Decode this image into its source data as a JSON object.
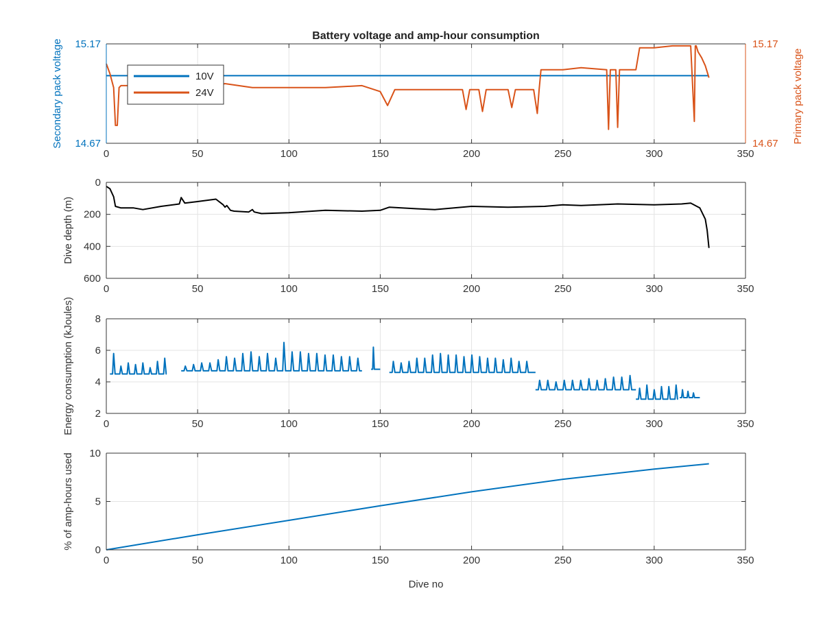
{
  "chart_data": [
    {
      "type": "line",
      "title": "Battery voltage and amp-hour consumption",
      "xlabel": "",
      "ylabel_left": "Secondary pack voltage",
      "ylabel_right": "Primary pack voltage",
      "xlim": [
        0,
        350
      ],
      "ylim": [
        14.67,
        15.17
      ],
      "xticks": [
        "0",
        "50",
        "100",
        "150",
        "200",
        "250",
        "300",
        "350"
      ],
      "yticks_left": [
        "14.67",
        "15.17"
      ],
      "yticks_right": [
        "14.67",
        "15.17"
      ],
      "grid": true,
      "legend": {
        "position": "top-left",
        "entries": [
          "10V",
          "24V"
        ]
      },
      "colors": {
        "10V": "#0072bd",
        "24V": "#d95319",
        "left_axis": "#0072bd",
        "right_axis": "#d95319"
      },
      "series": [
        {
          "name": "10V",
          "axis": "left",
          "x": [
            0,
            330
          ],
          "y": [
            15.01,
            15.01
          ]
        },
        {
          "name": "24V",
          "axis": "right",
          "x": [
            0,
            2,
            4,
            5,
            6,
            7,
            8,
            20,
            30,
            43,
            60,
            65,
            80,
            100,
            120,
            140,
            150,
            154,
            158,
            180,
            195,
            197,
            199,
            204,
            206,
            208,
            220,
            222,
            224,
            230,
            234,
            236,
            237,
            238,
            250,
            260,
            274,
            275,
            276,
            279,
            280,
            281,
            290,
            292,
            300,
            310,
            320,
            322,
            322.5,
            323,
            324,
            326,
            328,
            330
          ],
          "y": [
            15.07,
            15.02,
            14.95,
            14.76,
            14.76,
            14.95,
            14.96,
            14.96,
            14.96,
            14.96,
            14.96,
            14.97,
            14.95,
            14.95,
            14.95,
            14.96,
            14.93,
            14.86,
            14.94,
            14.94,
            14.94,
            14.84,
            14.94,
            14.94,
            14.83,
            14.94,
            14.94,
            14.85,
            14.94,
            14.94,
            14.94,
            14.82,
            14.94,
            15.04,
            15.04,
            15.05,
            15.04,
            14.74,
            15.04,
            15.04,
            14.75,
            15.04,
            15.04,
            15.15,
            15.15,
            15.16,
            15.16,
            14.78,
            15.16,
            15.16,
            15.13,
            15.1,
            15.06,
            15.0
          ]
        }
      ]
    },
    {
      "type": "line",
      "title": "",
      "xlabel": "",
      "ylabel": "Dive depth (m)",
      "xlim": [
        0,
        350
      ],
      "ylim": [
        0,
        600
      ],
      "yreversed": true,
      "xticks": [
        "0",
        "50",
        "100",
        "150",
        "200",
        "250",
        "300",
        "350"
      ],
      "yticks": [
        "0",
        "200",
        "400",
        "600"
      ],
      "grid": true,
      "colors": {
        "line": "#000000"
      },
      "series": [
        {
          "x": [
            0,
            2,
            4,
            5,
            8,
            15,
            20,
            30,
            40,
            41,
            43,
            50,
            60,
            64,
            65,
            66,
            68,
            70,
            78,
            80,
            81,
            85,
            100,
            120,
            140,
            150,
            155,
            170,
            180,
            200,
            220,
            240,
            250,
            260,
            280,
            300,
            315,
            320,
            325,
            328,
            329,
            330
          ],
          "y": [
            25,
            40,
            90,
            150,
            160,
            160,
            170,
            150,
            135,
            95,
            130,
            120,
            105,
            140,
            155,
            145,
            175,
            180,
            185,
            170,
            185,
            195,
            190,
            175,
            180,
            175,
            155,
            165,
            170,
            150,
            155,
            150,
            140,
            145,
            135,
            140,
            135,
            130,
            160,
            230,
            300,
            410
          ]
        }
      ]
    },
    {
      "type": "line",
      "title": "",
      "xlabel": "",
      "ylabel": "Energy consumption (kJoules)",
      "xlim": [
        0,
        350
      ],
      "ylim": [
        2,
        8
      ],
      "xticks": [
        "0",
        "50",
        "100",
        "150",
        "200",
        "250",
        "300",
        "350"
      ],
      "yticks": [
        "2",
        "4",
        "6",
        "8"
      ],
      "grid": true,
      "colors": {
        "line": "#0072bd"
      },
      "segments": [
        {
          "start": 2,
          "end": 33,
          "period": 4,
          "base": 4.5,
          "peaks": [
            5.8,
            5.0,
            5.2,
            5.1,
            5.2,
            4.9,
            5.3,
            5.5
          ]
        },
        {
          "start": 41,
          "end": 140,
          "period": 4.5,
          "base": 4.7,
          "peaks": [
            5.0,
            5.1,
            5.2,
            5.2,
            5.4,
            5.6,
            5.5,
            5.8,
            5.9,
            5.6,
            5.8,
            5.5,
            6.5,
            5.9,
            5.9,
            5.8,
            5.8,
            5.7,
            5.7,
            5.6,
            5.6,
            5.5
          ]
        },
        {
          "start": 145,
          "end": 150,
          "period": 2.5,
          "base": 4.8,
          "peaks": [
            6.2
          ]
        },
        {
          "start": 155,
          "end": 235,
          "period": 4.3,
          "base": 4.6,
          "peaks": [
            5.3,
            5.2,
            5.3,
            5.5,
            5.5,
            5.7,
            5.8,
            5.7,
            5.7,
            5.6,
            5.7,
            5.6,
            5.5,
            5.5,
            5.4,
            5.5,
            5.3,
            5.3,
            5.4
          ]
        },
        {
          "start": 235,
          "end": 290,
          "period": 4.5,
          "base": 3.5,
          "peaks": [
            4.1,
            4.1,
            4.0,
            4.1,
            4.1,
            4.1,
            4.2,
            4.1,
            4.2,
            4.3,
            4.3,
            4.4
          ]
        },
        {
          "start": 290,
          "end": 313,
          "period": 4,
          "base": 2.9,
          "peaks": [
            3.6,
            3.8,
            3.5,
            3.7,
            3.7,
            3.8
          ]
        },
        {
          "start": 314,
          "end": 325,
          "period": 3,
          "base": 3.0,
          "peaks": [
            3.5,
            3.4,
            3.3,
            3.5
          ]
        }
      ]
    },
    {
      "type": "line",
      "title": "",
      "xlabel": "Dive no",
      "ylabel": "% of amp-hours used",
      "xlim": [
        0,
        350
      ],
      "ylim": [
        0,
        10
      ],
      "xticks": [
        "0",
        "50",
        "100",
        "150",
        "200",
        "250",
        "300",
        "350"
      ],
      "yticks": [
        "0",
        "5",
        "10"
      ],
      "grid": true,
      "colors": {
        "line": "#0072bd"
      },
      "series": [
        {
          "x": [
            0,
            50,
            100,
            150,
            200,
            250,
            300,
            330
          ],
          "y": [
            0.0,
            1.55,
            3.05,
            4.55,
            6.0,
            7.3,
            8.35,
            8.9
          ]
        }
      ]
    }
  ]
}
